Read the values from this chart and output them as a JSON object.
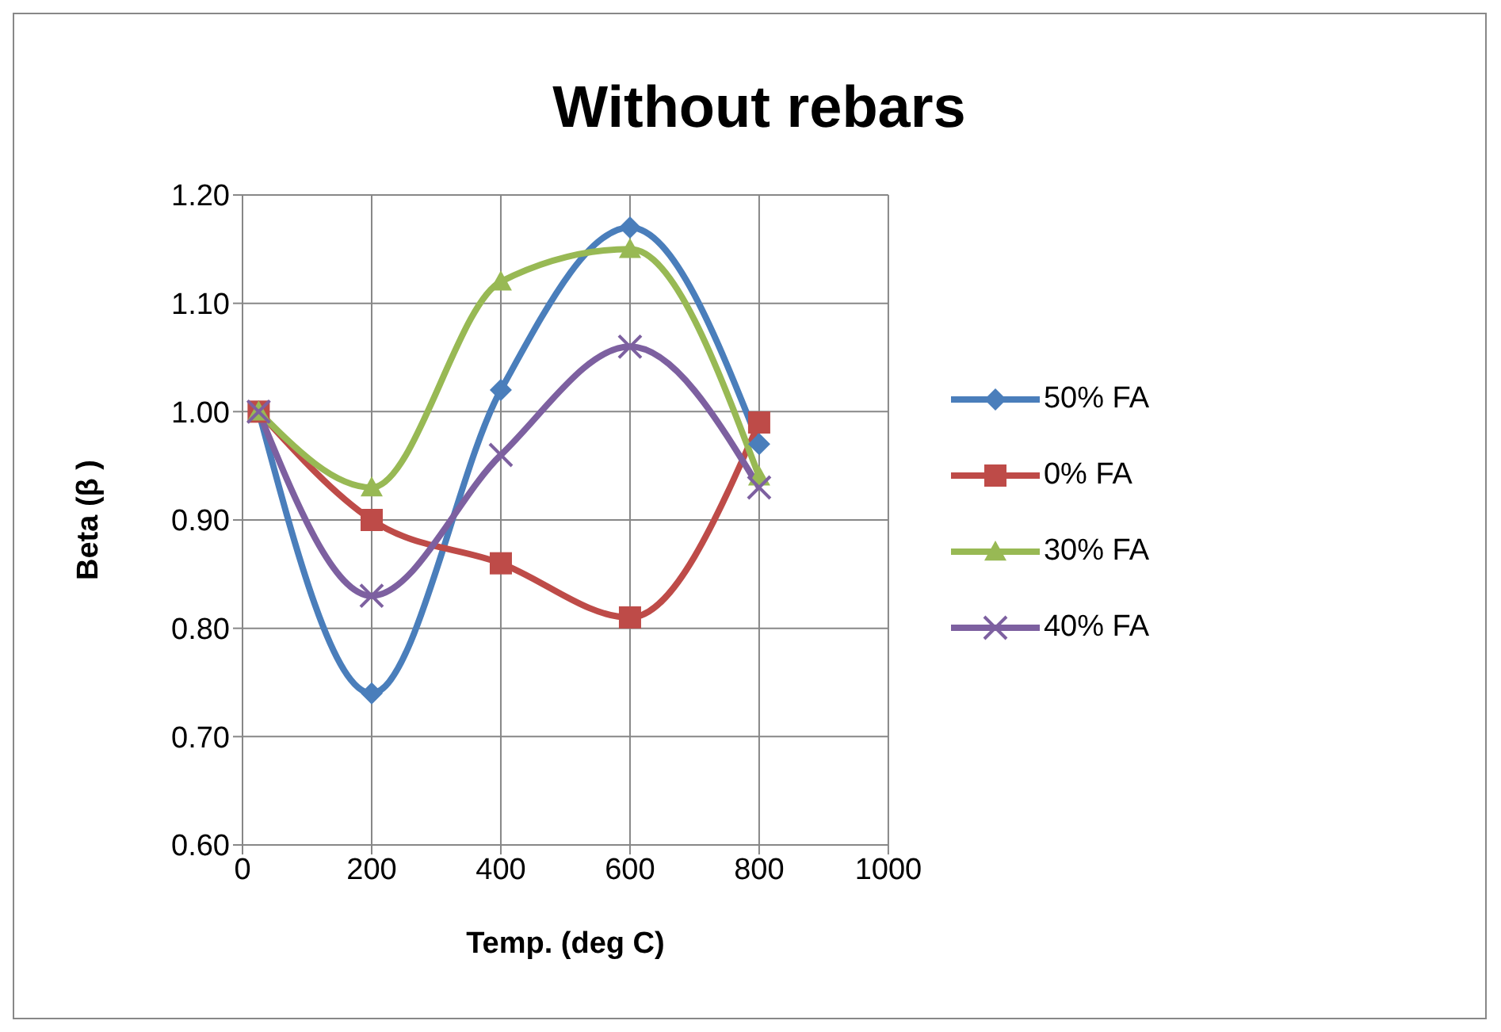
{
  "chart_data": {
    "type": "line",
    "title": "Without rebars",
    "xlabel": "Temp. (deg C)",
    "ylabel": "Beta (β )",
    "x": [
      25,
      200,
      400,
      600,
      800
    ],
    "series": [
      {
        "name": "50% FA",
        "color": "#4a7ebb",
        "marker": "diamond",
        "values": [
          1.0,
          0.74,
          1.02,
          1.17,
          0.97
        ]
      },
      {
        "name": "0% FA",
        "color": "#be4b48",
        "marker": "square",
        "values": [
          1.0,
          0.9,
          0.86,
          0.81,
          0.99
        ]
      },
      {
        "name": "30% FA",
        "color": "#98b954",
        "marker": "triangle",
        "values": [
          1.0,
          0.93,
          1.12,
          1.15,
          0.94
        ]
      },
      {
        "name": "40% FA",
        "color": "#7d60a0",
        "marker": "cross",
        "values": [
          1.0,
          0.83,
          0.96,
          1.06,
          0.93
        ]
      }
    ],
    "xlim": [
      0,
      1000
    ],
    "xticks": [
      0,
      200,
      400,
      600,
      800,
      1000
    ],
    "ylim": [
      0.6,
      1.2
    ],
    "yticks": [
      {
        "value": 0.6,
        "label": "0.60"
      },
      {
        "value": 0.7,
        "label": "0.70"
      },
      {
        "value": 0.8,
        "label": "0.80"
      },
      {
        "value": 0.9,
        "label": "0.90"
      },
      {
        "value": 1.0,
        "label": "1.00"
      },
      {
        "value": 1.1,
        "label": "1.10"
      },
      {
        "value": 1.2,
        "label": "1.20"
      }
    ],
    "grid": true,
    "legend": "right",
    "line_style": "solid"
  }
}
